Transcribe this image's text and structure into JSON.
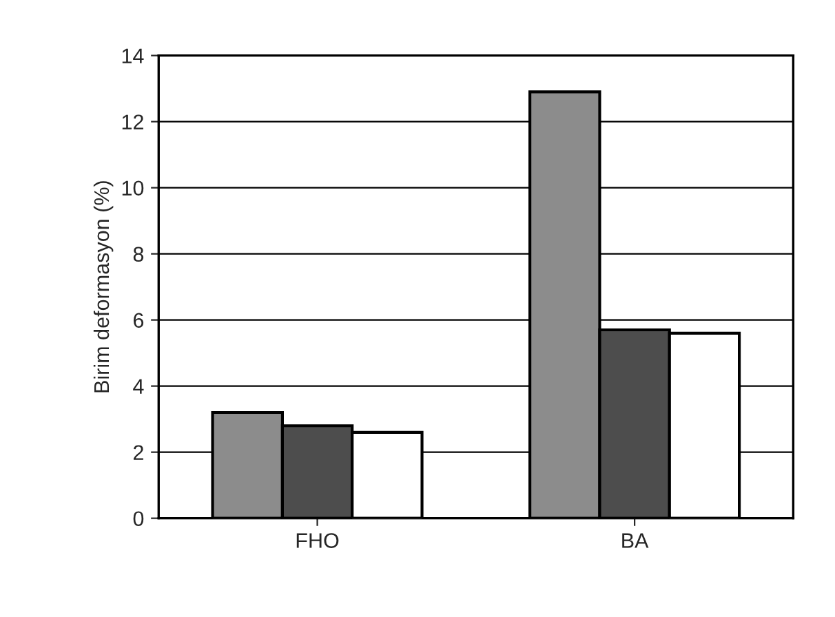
{
  "chart_data": {
    "type": "bar",
    "ylabel": "Birim deformasyon (%)",
    "categories": [
      "FHO",
      "BA"
    ],
    "series": [
      {
        "color": "#8c8c8c",
        "values": [
          3.2,
          12.9
        ]
      },
      {
        "color": "#4d4d4d",
        "values": [
          2.8,
          5.7
        ]
      },
      {
        "color": "#ffffff",
        "values": [
          2.6,
          5.6
        ]
      }
    ],
    "ylim": [
      0,
      14
    ],
    "yticks": [
      0,
      2,
      4,
      6,
      8,
      10,
      12,
      14
    ],
    "grid": "y",
    "legend": false
  }
}
